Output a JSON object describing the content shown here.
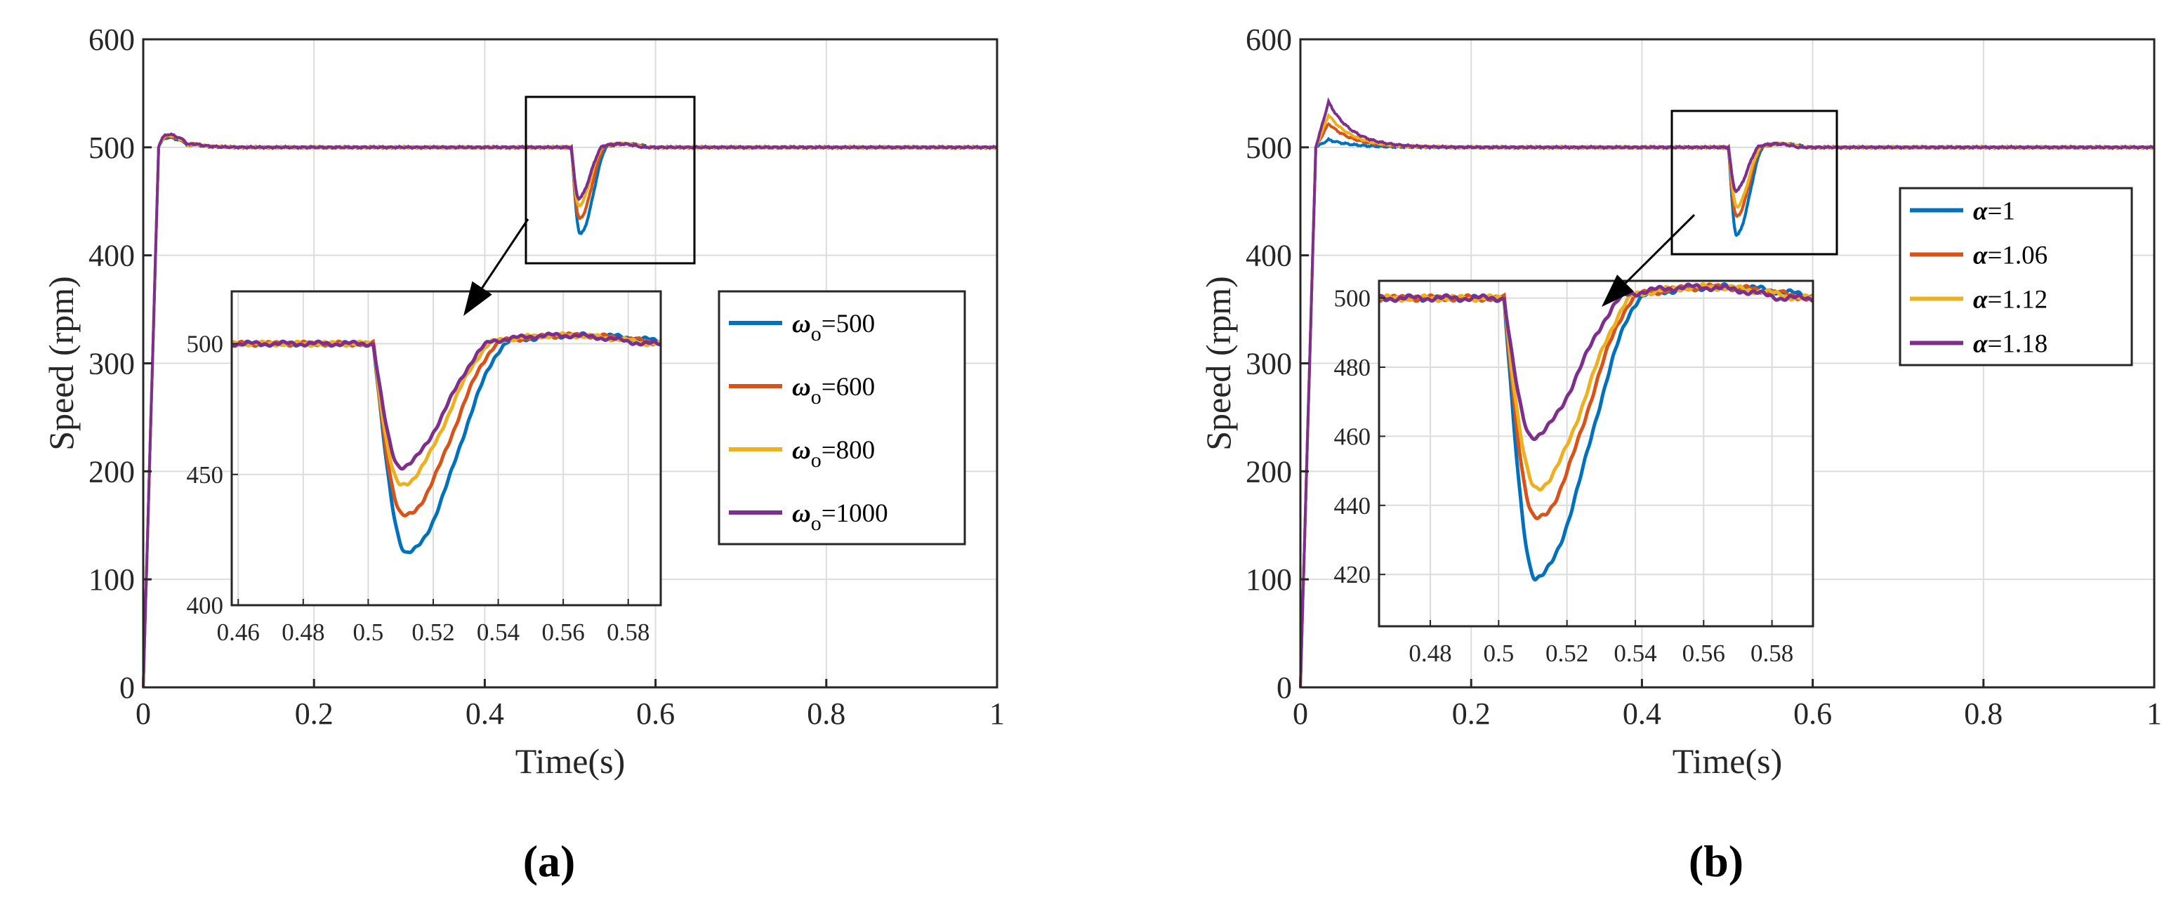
{
  "chart_data": [
    {
      "type": "line",
      "panel_label": "(a)",
      "xlabel": "Time(s)",
      "ylabel": "Speed (rpm)",
      "xlim": [
        0,
        1
      ],
      "ylim": [
        0,
        600
      ],
      "xticks": [
        "0",
        "0.2",
        "0.4",
        "0.6",
        "0.8",
        "1"
      ],
      "yticks": [
        "0",
        "100",
        "200",
        "300",
        "400",
        "500",
        "600"
      ],
      "grid": true,
      "legend_position": "inside-right",
      "legend_symbol": "ω",
      "legend_subscript": "o",
      "series": [
        {
          "name": "=500",
          "color": "#0072BD",
          "overshoot": 509,
          "min": 420,
          "min_t": 0.512
        },
        {
          "name": "=600",
          "color": "#D95319",
          "overshoot": 510,
          "min": 434,
          "min_t": 0.511
        },
        {
          "name": "=800",
          "color": "#EDB120",
          "overshoot": 511,
          "min": 446,
          "min_t": 0.51
        },
        {
          "name": "=1000",
          "color": "#7E2F8E",
          "overshoot": 512,
          "min": 453,
          "min_t": 0.51
        }
      ],
      "inset": {
        "xlim": [
          0.458,
          0.59
        ],
        "ylim": [
          400,
          520
        ],
        "xticks": [
          "0.46",
          "0.48",
          "0.5",
          "0.52",
          "0.54",
          "0.56",
          "0.58"
        ],
        "yticks": [
          "400",
          "450",
          "500"
        ]
      }
    },
    {
      "type": "line",
      "panel_label": "(b)",
      "xlabel": "Time(s)",
      "ylabel": "Speed (rpm)",
      "xlim": [
        0,
        1
      ],
      "ylim": [
        0,
        600
      ],
      "xticks": [
        "0",
        "0.2",
        "0.4",
        "0.6",
        "0.8",
        "1"
      ],
      "yticks": [
        "0",
        "100",
        "200",
        "300",
        "400",
        "500",
        "600"
      ],
      "grid": true,
      "legend_position": "right",
      "legend_symbol": "α",
      "series": [
        {
          "name": "=1",
          "color": "#0072BD",
          "overshoot": 507,
          "min": 419,
          "min_t": 0.511
        },
        {
          "name": "=1.06",
          "color": "#D95319",
          "overshoot": 522,
          "min": 436,
          "min_t": 0.511
        },
        {
          "name": "=1.12",
          "color": "#EDB120",
          "overshoot": 530,
          "min": 445,
          "min_t": 0.511
        },
        {
          "name": "=1.18",
          "color": "#7E2F8E",
          "overshoot": 542,
          "min": 460,
          "min_t": 0.51
        }
      ],
      "inset": {
        "xlim": [
          0.465,
          0.592
        ],
        "ylim": [
          405,
          505
        ],
        "xticks": [
          "0.48",
          "0.5",
          "0.52",
          "0.54",
          "0.56",
          "0.58"
        ],
        "yticks": [
          "420",
          "440",
          "460",
          "480",
          "500"
        ]
      }
    }
  ]
}
